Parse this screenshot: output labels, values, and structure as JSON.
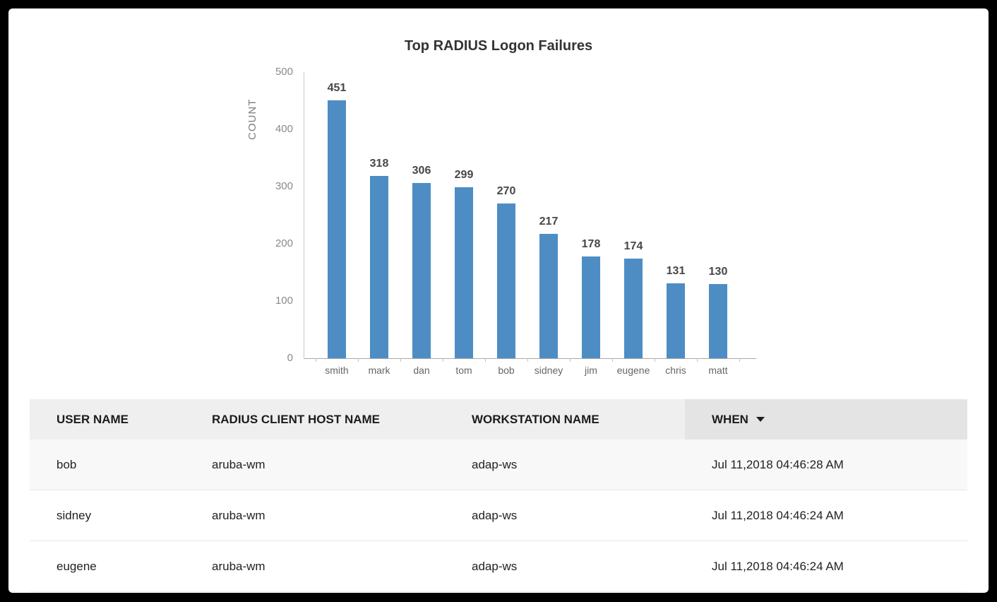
{
  "chart_data": {
    "type": "bar",
    "title": "Top RADIUS Logon Failures",
    "xlabel": "",
    "ylabel": "COUNT",
    "categories": [
      "smith",
      "mark",
      "dan",
      "tom",
      "bob",
      "sidney",
      "jim",
      "eugene",
      "chris",
      "matt"
    ],
    "values": [
      451,
      318,
      306,
      299,
      270,
      217,
      178,
      174,
      131,
      130
    ],
    "ylim": [
      0,
      500
    ],
    "yticks": [
      0,
      100,
      200,
      300,
      400,
      500
    ],
    "bar_color": "#4d8dc4",
    "grid": false,
    "legend": false
  },
  "table": {
    "columns": [
      {
        "label": "USER NAME",
        "sort": ""
      },
      {
        "label": "RADIUS CLIENT HOST NAME",
        "sort": ""
      },
      {
        "label": "WORKSTATION NAME",
        "sort": ""
      },
      {
        "label": "WHEN",
        "sort": "desc"
      }
    ],
    "rows": [
      [
        "bob",
        "aruba-wm",
        "adap-ws",
        "Jul 11,2018 04:46:28 AM"
      ],
      [
        "sidney",
        "aruba-wm",
        "adap-ws",
        "Jul 11,2018 04:46:24 AM"
      ],
      [
        "eugene",
        "aruba-wm",
        "adap-ws",
        "Jul 11,2018 04:46:24 AM"
      ]
    ]
  }
}
